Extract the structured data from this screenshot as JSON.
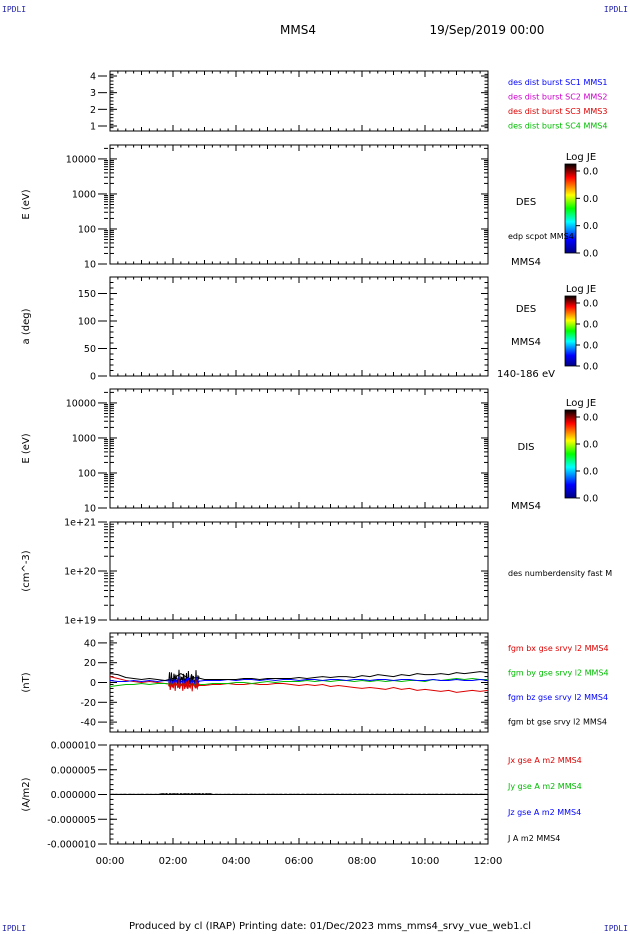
{
  "corner_labels": {
    "tl": "IPDLI",
    "tr": "IPDLI",
    "bl": "IPDLI",
    "br": "IPDLI"
  },
  "header": {
    "spacecraft": "MMS4",
    "datetime": "19/Sep/2019 00:00"
  },
  "footer": {
    "text": "Produced by cl (IRAP)   Printing date: 01/Dec/2023   mms_mms4_srvy_vue_web1.cl"
  },
  "colors": {
    "mms1": "#0000ff",
    "mms2": "#cc00cc",
    "mms3": "#dd0000",
    "mms4": "#00bb00",
    "bt": "#000000"
  },
  "chart_data": [
    {
      "type": "line",
      "id": "panel1",
      "ylabel": "",
      "ylim": [
        0.7,
        4.3
      ],
      "yticks": [
        1,
        2,
        3,
        4
      ],
      "ytick_labels": [
        "1",
        "2",
        "3",
        "4"
      ],
      "series": [
        {
          "name": "des dist burst SC1 MMS1",
          "color": "#0000ff",
          "values": []
        },
        {
          "name": "des dist burst SC2 MMS2",
          "color": "#cc00cc",
          "values": []
        },
        {
          "name": "des dist burst SC3 MMS3",
          "color": "#dd0000",
          "values": []
        },
        {
          "name": "des dist burst SC4 MMS4",
          "color": "#00bb00",
          "values": []
        }
      ]
    },
    {
      "type": "heatmap",
      "id": "panel2",
      "ylabel": "E (eV)",
      "yscale": "log",
      "ylim": [
        10,
        25000
      ],
      "yticks": [
        10,
        100,
        1000,
        10000
      ],
      "ytick_labels": [
        "10",
        "100",
        "1000",
        "10000"
      ],
      "right_labels": [
        "DES",
        "edp scpot MMS4",
        "MMS4"
      ],
      "colorbar": {
        "title": "Log JE",
        "tick_labels": [
          "0.0",
          "0.0",
          "0.0",
          "0.0"
        ]
      }
    },
    {
      "type": "heatmap",
      "id": "panel3",
      "ylabel": "a (deg)",
      "ylim": [
        0,
        180
      ],
      "yticks": [
        0,
        50,
        100,
        150
      ],
      "ytick_labels": [
        "0",
        "50",
        "100",
        "150"
      ],
      "right_labels": [
        "DES",
        "MMS4",
        "140-186 eV"
      ],
      "colorbar": {
        "title": "Log JE",
        "tick_labels": [
          "0.0",
          "0.0",
          "0.0",
          "0.0"
        ]
      }
    },
    {
      "type": "heatmap",
      "id": "panel4",
      "ylabel": "E (eV)",
      "yscale": "log",
      "ylim": [
        10,
        25000
      ],
      "yticks": [
        10,
        100,
        1000,
        10000
      ],
      "ytick_labels": [
        "10",
        "100",
        "1000",
        "10000"
      ],
      "right_labels": [
        "DIS",
        "MMS4"
      ],
      "colorbar": {
        "title": "Log JE",
        "tick_labels": [
          "0.0",
          "0.0",
          "0.0",
          "0.0"
        ]
      }
    },
    {
      "type": "line",
      "id": "panel5",
      "ylabel": "(cm^-3)",
      "yscale": "log",
      "ylim": [
        1e+19,
        1e+21
      ],
      "yticks": [
        1e+19,
        1e+20,
        1e+21
      ],
      "ytick_labels": [
        "1e+19",
        "1e+20",
        "1e+21"
      ],
      "series": [
        {
          "name": "des numberdensity fast M",
          "color": "#000000",
          "values": []
        }
      ]
    },
    {
      "type": "line",
      "id": "panel6",
      "ylabel": "(nT)",
      "ylim": [
        -50,
        50
      ],
      "yticks": [
        -40,
        -20,
        0,
        20,
        40
      ],
      "ytick_labels": [
        "-40",
        "-20",
        "0",
        "20",
        "40"
      ],
      "x": [
        0,
        0.25,
        0.5,
        0.75,
        1,
        1.25,
        1.5,
        1.75,
        2,
        2.25,
        2.5,
        2.75,
        3,
        3.25,
        3.5,
        3.75,
        4,
        4.25,
        4.5,
        4.75,
        5,
        5.25,
        5.5,
        5.75,
        6,
        6.25,
        6.5,
        6.75,
        7,
        7.25,
        7.5,
        7.75,
        8,
        8.25,
        8.5,
        8.75,
        9,
        9.25,
        9.5,
        9.75,
        10,
        10.25,
        10.5,
        10.75,
        11,
        11.25,
        11.5,
        11.75,
        12
      ],
      "series": [
        {
          "name": "fgm bx gse srvy l2 MMS4",
          "color": "#dd0000",
          "values": [
            6,
            4,
            2,
            1,
            0,
            1,
            0,
            -1,
            -2,
            -3,
            -2,
            -3,
            -3,
            -2,
            -2,
            -1,
            -2,
            -2,
            -1,
            -2,
            -2,
            -1,
            -1,
            -2,
            -3,
            -2,
            -3,
            -2,
            -4,
            -3,
            -4,
            -5,
            -6,
            -5,
            -6,
            -7,
            -5,
            -7,
            -6,
            -8,
            -7,
            -8,
            -9,
            -8,
            -10,
            -9,
            -8,
            -9,
            -8
          ]
        },
        {
          "name": "fgm by gse srvy l2 MMS4",
          "color": "#00bb00",
          "values": [
            -4,
            -3,
            -2,
            -2,
            -1,
            -2,
            -1,
            -1,
            -2,
            -3,
            -1,
            -2,
            -2,
            -1,
            -1,
            -1,
            0,
            0,
            -1,
            0,
            1,
            0,
            1,
            1,
            1,
            2,
            1,
            2,
            1,
            2,
            2,
            1,
            2,
            1,
            2,
            1,
            2,
            1,
            2,
            2,
            1,
            3,
            2,
            3,
            4,
            3,
            4,
            3,
            3
          ]
        },
        {
          "name": "fgm bz gse srvy l2 MMS4",
          "color": "#0000ff",
          "values": [
            2,
            1,
            1,
            2,
            1,
            2,
            1,
            2,
            1,
            3,
            2,
            1,
            2,
            2,
            2,
            3,
            2,
            3,
            3,
            2,
            3,
            2,
            3,
            3,
            2,
            3,
            3,
            2,
            3,
            3,
            2,
            3,
            3,
            2,
            3,
            3,
            2,
            3,
            3,
            2,
            2,
            3,
            2,
            2,
            3,
            2,
            2,
            3,
            2
          ]
        },
        {
          "name": "fgm bt gse srvy l2 MMS4",
          "color": "#000000",
          "values": [
            9,
            8,
            5,
            4,
            3,
            4,
            3,
            2,
            4,
            9,
            4,
            5,
            3,
            3,
            3,
            3,
            3,
            4,
            4,
            3,
            4,
            4,
            4,
            4,
            5,
            4,
            5,
            6,
            5,
            6,
            6,
            5,
            7,
            6,
            8,
            7,
            6,
            8,
            7,
            9,
            8,
            8,
            9,
            8,
            10,
            9,
            10,
            11,
            10
          ]
        }
      ]
    },
    {
      "type": "line",
      "id": "panel7",
      "ylabel": "(A/m2)",
      "ylim": [
        -1e-05,
        1e-05
      ],
      "yticks": [
        -1e-05,
        -5e-06,
        0,
        5e-06,
        1e-05
      ],
      "ytick_labels": [
        "-0.000010",
        "-0.000005",
        "0.000000",
        "0.000005",
        "0.000010"
      ],
      "x": [
        0,
        12
      ],
      "series": [
        {
          "name": "Jx gse A m2 MMS4",
          "color": "#dd0000",
          "values": [
            0,
            0
          ]
        },
        {
          "name": "Jy gse A m2 MMS4",
          "color": "#00bb00",
          "values": [
            0,
            0
          ]
        },
        {
          "name": "Jz gse A m2 MMS4",
          "color": "#0000ff",
          "values": [
            0,
            0
          ]
        },
        {
          "name": "J A m2 MMS4",
          "color": "#000000",
          "values": [
            0,
            0
          ]
        }
      ]
    }
  ],
  "xaxis": {
    "xlim": [
      0,
      12
    ],
    "ticks": [
      0,
      2,
      4,
      6,
      8,
      10,
      12
    ],
    "tick_labels": [
      "00:00",
      "02:00",
      "04:00",
      "06:00",
      "08:00",
      "10:00",
      "12:00"
    ]
  }
}
